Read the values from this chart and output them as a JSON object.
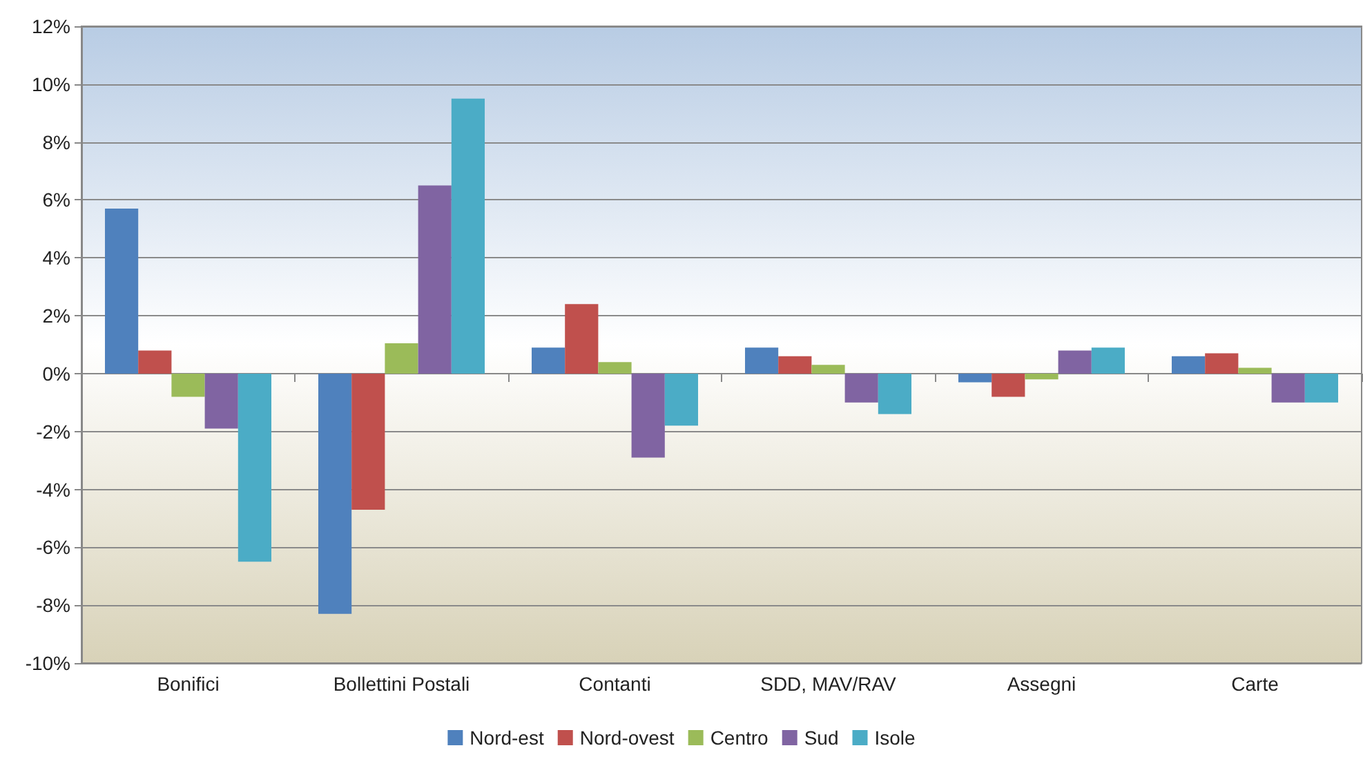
{
  "chart_data": {
    "type": "bar",
    "categories": [
      "Bonifici",
      "Bollettini Postali",
      "Contanti",
      "SDD, MAV/RAV",
      "Assegni",
      "Carte"
    ],
    "series": [
      {
        "name": "Nord-est",
        "color": "#4f81bd",
        "values": [
          5.7,
          -8.3,
          0.9,
          0.9,
          -0.3,
          0.6
        ]
      },
      {
        "name": "Nord-ovest",
        "color": "#c0504d",
        "values": [
          0.8,
          -4.7,
          2.4,
          0.6,
          -0.8,
          0.7
        ]
      },
      {
        "name": "Centro",
        "color": "#9bbb59",
        "values": [
          -0.8,
          1.05,
          0.4,
          0.3,
          -0.2,
          0.2
        ]
      },
      {
        "name": "Sud",
        "color": "#8064a2",
        "values": [
          -1.9,
          6.5,
          -2.9,
          -1.0,
          0.8,
          -1.0
        ]
      },
      {
        "name": "Isole",
        "color": "#4bacc6",
        "values": [
          -6.5,
          9.5,
          -1.8,
          -1.4,
          0.9,
          -1.0
        ]
      }
    ],
    "ylim": [
      -10,
      12
    ],
    "yticks": [
      {
        "value": -10,
        "label": "-10%"
      },
      {
        "value": -8,
        "label": "-8%"
      },
      {
        "value": -6,
        "label": "-6%"
      },
      {
        "value": -4,
        "label": "-4%"
      },
      {
        "value": -2,
        "label": "-2%"
      },
      {
        "value": 0,
        "label": "0%"
      },
      {
        "value": 2,
        "label": "2%"
      },
      {
        "value": 4,
        "label": "4%"
      },
      {
        "value": 6,
        "label": "6%"
      },
      {
        "value": 8,
        "label": "8%"
      },
      {
        "value": 10,
        "label": "10%"
      },
      {
        "value": 12,
        "label": "12%"
      }
    ],
    "grid": "y",
    "legend": "bottom"
  }
}
